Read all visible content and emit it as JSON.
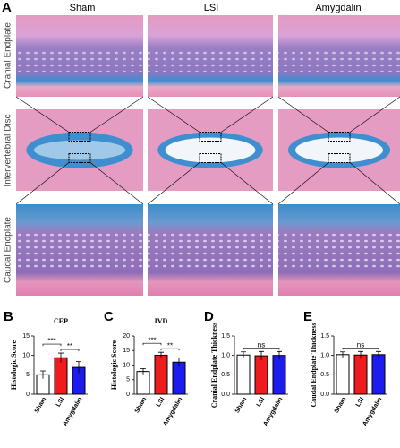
{
  "panel_a": {
    "label": "A",
    "columns": [
      "Sham",
      "LSI",
      "Amygdalin"
    ],
    "rows": [
      "Cranial Endplate",
      "Intervertebral Disc",
      "Caudal Endplate"
    ]
  },
  "chart_data": [
    {
      "type": "bar",
      "panel": "B",
      "title": "CEP",
      "ylabel": "Histologic Score",
      "categories": [
        "Sham",
        "LSI",
        "Amygdalin"
      ],
      "values": [
        5,
        9.4,
        6.9
      ],
      "errors": [
        1,
        1.2,
        1.5
      ],
      "colors": [
        "#ffffff",
        "#ee1c1c",
        "#1c1cee"
      ],
      "ylim": [
        0,
        15
      ],
      "yticks": [
        0,
        5,
        10,
        15
      ],
      "significance": [
        {
          "label": "***",
          "groups": [
            "Sham",
            "LSI"
          ]
        },
        {
          "label": "**",
          "groups": [
            "LSI",
            "Amygdalin"
          ]
        }
      ]
    },
    {
      "type": "bar",
      "panel": "C",
      "title": "IVD",
      "ylabel": "Histologic Score",
      "categories": [
        "Sham",
        "LSI",
        "Amygdalin"
      ],
      "values": [
        7.8,
        13.4,
        11
      ],
      "errors": [
        1,
        1,
        1.5
      ],
      "colors": [
        "#ffffff",
        "#ee1c1c",
        "#1c1cee"
      ],
      "ylim": [
        0,
        20
      ],
      "yticks": [
        0,
        5,
        10,
        15,
        20
      ],
      "significance": [
        {
          "label": "***",
          "groups": [
            "Sham",
            "LSI"
          ]
        },
        {
          "label": "**",
          "groups": [
            "LSI",
            "Amygdalin"
          ]
        }
      ]
    },
    {
      "type": "bar",
      "panel": "D",
      "ylabel": "Cranial Endplate Thickness",
      "categories": [
        "Sham",
        "LSI",
        "Amygdalin"
      ],
      "values": [
        1.01,
        0.99,
        1.0
      ],
      "errors": [
        0.08,
        0.11,
        0.1
      ],
      "colors": [
        "#ffffff",
        "#ee1c1c",
        "#1c1cee"
      ],
      "ylim": [
        0,
        1.5
      ],
      "yticks": [
        {
          "value": 0,
          "label": "0.0"
        },
        {
          "value": 0.5,
          "label": "0.5"
        },
        {
          "value": 1,
          "label": "1.0"
        },
        {
          "value": 1.5,
          "label": "1.5"
        }
      ],
      "significance": [
        {
          "label": "ns",
          "groups": [
            "Sham",
            "Amygdalin"
          ]
        }
      ]
    },
    {
      "type": "bar",
      "panel": "E",
      "ylabel": "Caudal Endplate Thickness",
      "categories": [
        "Sham",
        "LSI",
        "Amygdalin"
      ],
      "values": [
        1.02,
        1.01,
        1.02
      ],
      "errors": [
        0.07,
        0.09,
        0.08
      ],
      "colors": [
        "#ffffff",
        "#ee1c1c",
        "#1c1cee"
      ],
      "ylim": [
        0,
        1.5
      ],
      "yticks": [
        {
          "value": 0,
          "label": "0.0"
        },
        {
          "value": 0.5,
          "label": "0.5"
        },
        {
          "value": 1,
          "label": "1.0"
        },
        {
          "value": 1.5,
          "label": "1.5"
        }
      ],
      "significance": [
        {
          "label": "ns",
          "groups": [
            "Sham",
            "Amygdalin"
          ]
        }
      ]
    }
  ]
}
